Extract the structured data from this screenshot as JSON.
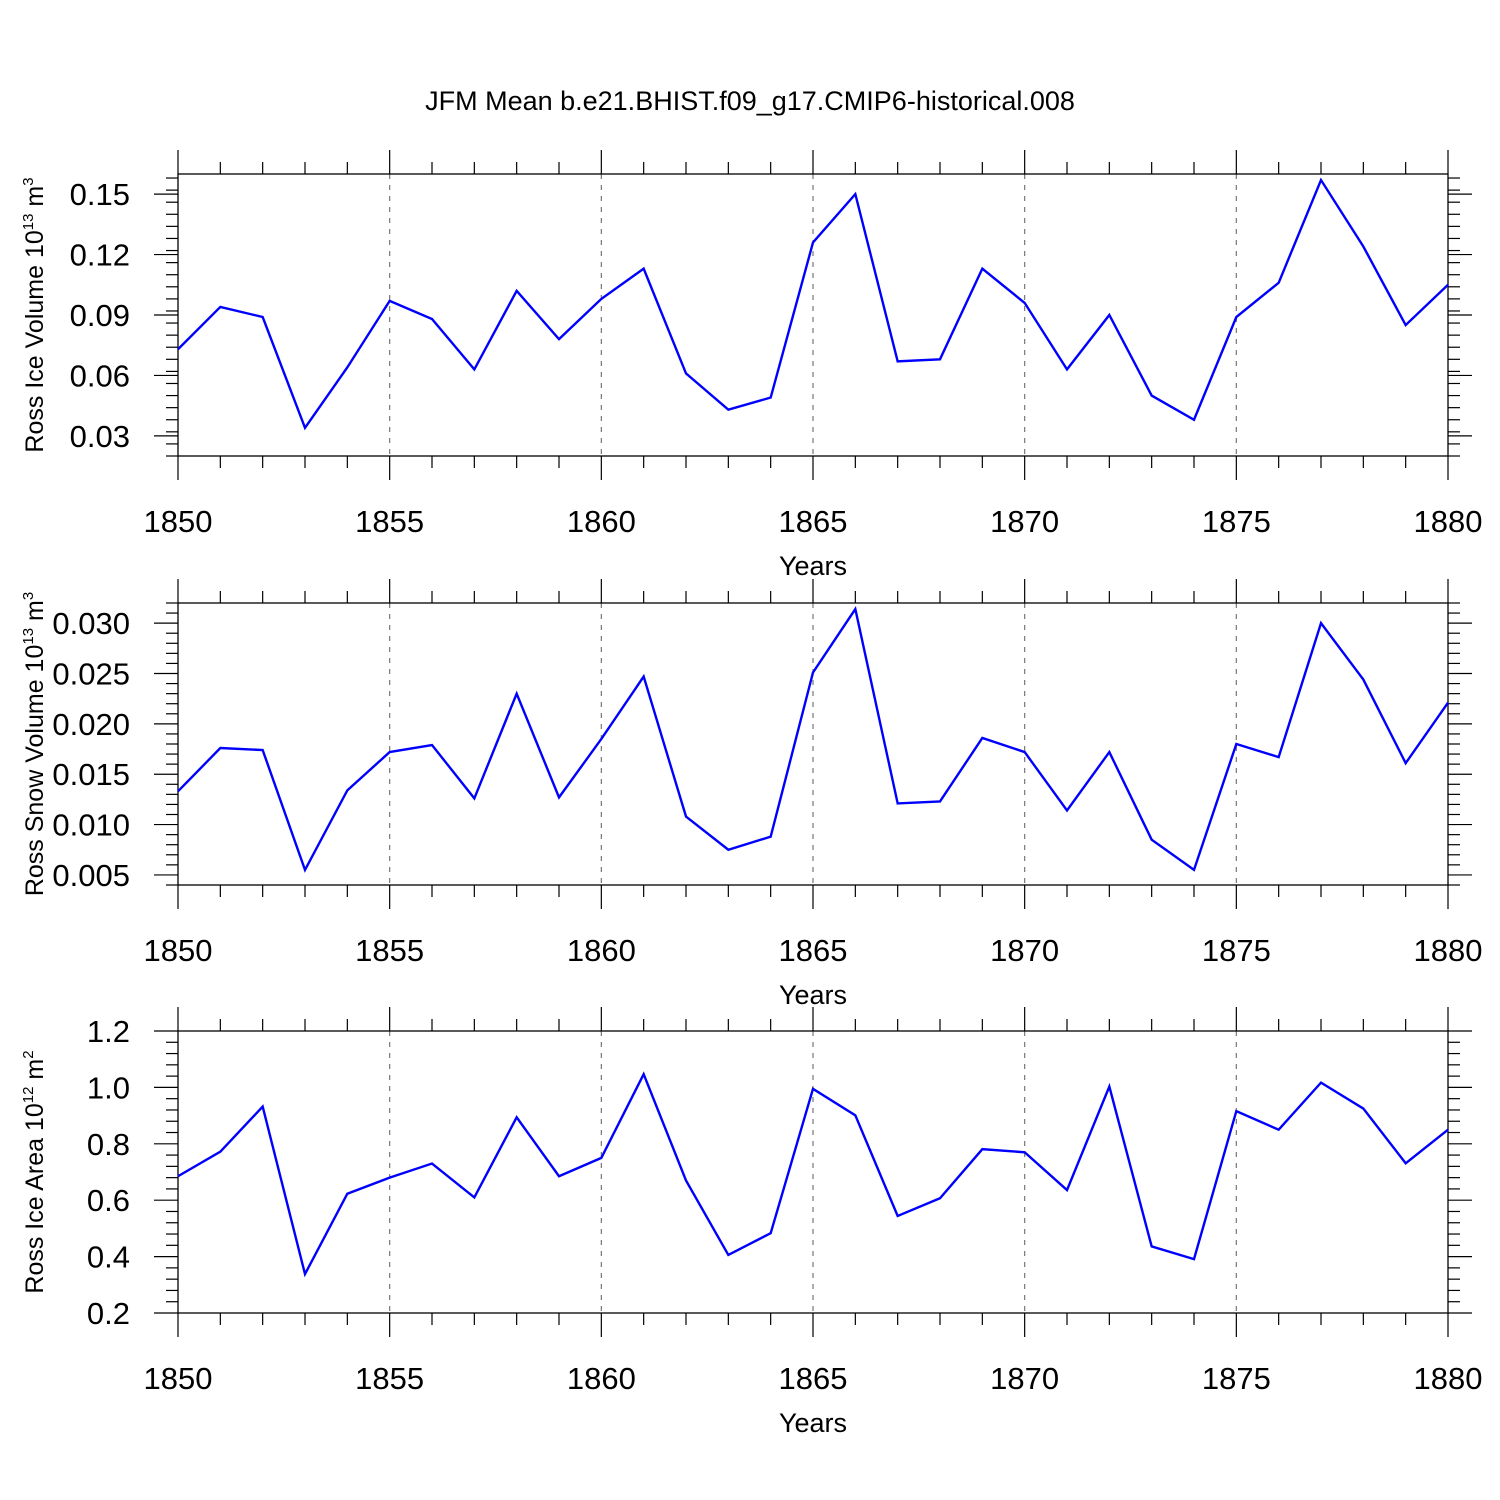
{
  "figure": {
    "title": "JFM Mean b.e21.BHIST.f09_g17.CMIP6-historical.008"
  },
  "colors": {
    "series": "#0000ff",
    "axis": "#000000",
    "grid": "#777777"
  },
  "chart_data": [
    {
      "type": "line",
      "ylabel_main": "Ross Ice Volume 10",
      "ylabel_exp": "13",
      "ylabel_unit": " m",
      "ylabel_unit_exp": "3",
      "xlabel": "Years",
      "xlim": [
        1850,
        1880
      ],
      "ylim": [
        0.02,
        0.16
      ],
      "xticks": [
        1850,
        1855,
        1860,
        1865,
        1870,
        1875,
        1880
      ],
      "xtick_labels": [
        "1850",
        "1855",
        "1860",
        "1865",
        "1870",
        "1875",
        "1880"
      ],
      "yticks": [
        0.03,
        0.06,
        0.09,
        0.12,
        0.15
      ],
      "ytick_labels": [
        "0.03",
        "0.06",
        "0.09",
        "0.12",
        "0.15"
      ],
      "yminor_step": 0.006,
      "grid": "vertical-dashed",
      "x": [
        1850,
        1851,
        1852,
        1853,
        1854,
        1855,
        1856,
        1857,
        1858,
        1859,
        1860,
        1861,
        1862,
        1863,
        1864,
        1865,
        1866,
        1867,
        1868,
        1869,
        1870,
        1871,
        1872,
        1873,
        1874,
        1875,
        1876,
        1877,
        1878,
        1879,
        1880
      ],
      "series": [
        {
          "name": "Ross Ice Volume",
          "values": [
            0.073,
            0.094,
            0.089,
            0.034,
            0.064,
            0.097,
            0.088,
            0.063,
            0.102,
            0.078,
            0.098,
            0.113,
            0.061,
            0.043,
            0.049,
            0.126,
            0.15,
            0.067,
            0.068,
            0.113,
            0.096,
            0.063,
            0.09,
            0.05,
            0.038,
            0.089,
            0.106,
            0.157,
            0.124,
            0.085,
            0.105
          ]
        }
      ]
    },
    {
      "type": "line",
      "ylabel_main": "Ross Snow Volume 10",
      "ylabel_exp": "13",
      "ylabel_unit": " m",
      "ylabel_unit_exp": "3",
      "xlabel": "Years",
      "xlim": [
        1850,
        1880
      ],
      "ylim": [
        0.004,
        0.032
      ],
      "xticks": [
        1850,
        1855,
        1860,
        1865,
        1870,
        1875,
        1880
      ],
      "xtick_labels": [
        "1850",
        "1855",
        "1860",
        "1865",
        "1870",
        "1875",
        "1880"
      ],
      "yticks": [
        0.005,
        0.01,
        0.015,
        0.02,
        0.025,
        0.03
      ],
      "ytick_labels": [
        "0.005",
        "0.010",
        "0.015",
        "0.020",
        "0.025",
        "0.030"
      ],
      "yminor_step": 0.001,
      "grid": "vertical-dashed",
      "x": [
        1850,
        1851,
        1852,
        1853,
        1854,
        1855,
        1856,
        1857,
        1858,
        1859,
        1860,
        1861,
        1862,
        1863,
        1864,
        1865,
        1866,
        1867,
        1868,
        1869,
        1870,
        1871,
        1872,
        1873,
        1874,
        1875,
        1876,
        1877,
        1878,
        1879,
        1880
      ],
      "series": [
        {
          "name": "Ross Snow Volume",
          "values": [
            0.0133,
            0.0176,
            0.0174,
            0.0055,
            0.0134,
            0.0172,
            0.0179,
            0.0126,
            0.023,
            0.0127,
            0.0185,
            0.0247,
            0.0108,
            0.0075,
            0.0088,
            0.0251,
            0.0314,
            0.0121,
            0.0123,
            0.0186,
            0.0172,
            0.0114,
            0.0172,
            0.0085,
            0.0055,
            0.018,
            0.0167,
            0.03,
            0.0244,
            0.0161,
            0.0221
          ]
        }
      ]
    },
    {
      "type": "line",
      "ylabel_main": "Ross Ice Area 10",
      "ylabel_exp": "12",
      "ylabel_unit": " m",
      "ylabel_unit_exp": "2",
      "xlabel": "Years",
      "xlim": [
        1850,
        1880
      ],
      "ylim": [
        0.2,
        1.2
      ],
      "xticks": [
        1850,
        1855,
        1860,
        1865,
        1870,
        1875,
        1880
      ],
      "xtick_labels": [
        "1850",
        "1855",
        "1860",
        "1865",
        "1870",
        "1875",
        "1880"
      ],
      "yticks": [
        0.2,
        0.4,
        0.6,
        0.8,
        1.0,
        1.2
      ],
      "ytick_labels": [
        "0.2",
        "0.4",
        "0.6",
        "0.8",
        "1.0",
        "1.2"
      ],
      "yminor_step": 0.04,
      "grid": "vertical-dashed",
      "x": [
        1850,
        1851,
        1852,
        1853,
        1854,
        1855,
        1856,
        1857,
        1858,
        1859,
        1860,
        1861,
        1862,
        1863,
        1864,
        1865,
        1866,
        1867,
        1868,
        1869,
        1870,
        1871,
        1872,
        1873,
        1874,
        1875,
        1876,
        1877,
        1878,
        1879,
        1880
      ],
      "series": [
        {
          "name": "Ross Ice Area",
          "values": [
            0.685,
            0.772,
            0.932,
            0.338,
            0.623,
            0.68,
            0.73,
            0.61,
            0.894,
            0.685,
            0.75,
            1.047,
            0.67,
            0.406,
            0.483,
            0.995,
            0.901,
            0.544,
            0.607,
            0.781,
            0.77,
            0.636,
            1.003,
            0.436,
            0.391,
            0.916,
            0.85,
            1.017,
            0.925,
            0.731,
            0.85
          ]
        }
      ]
    }
  ]
}
